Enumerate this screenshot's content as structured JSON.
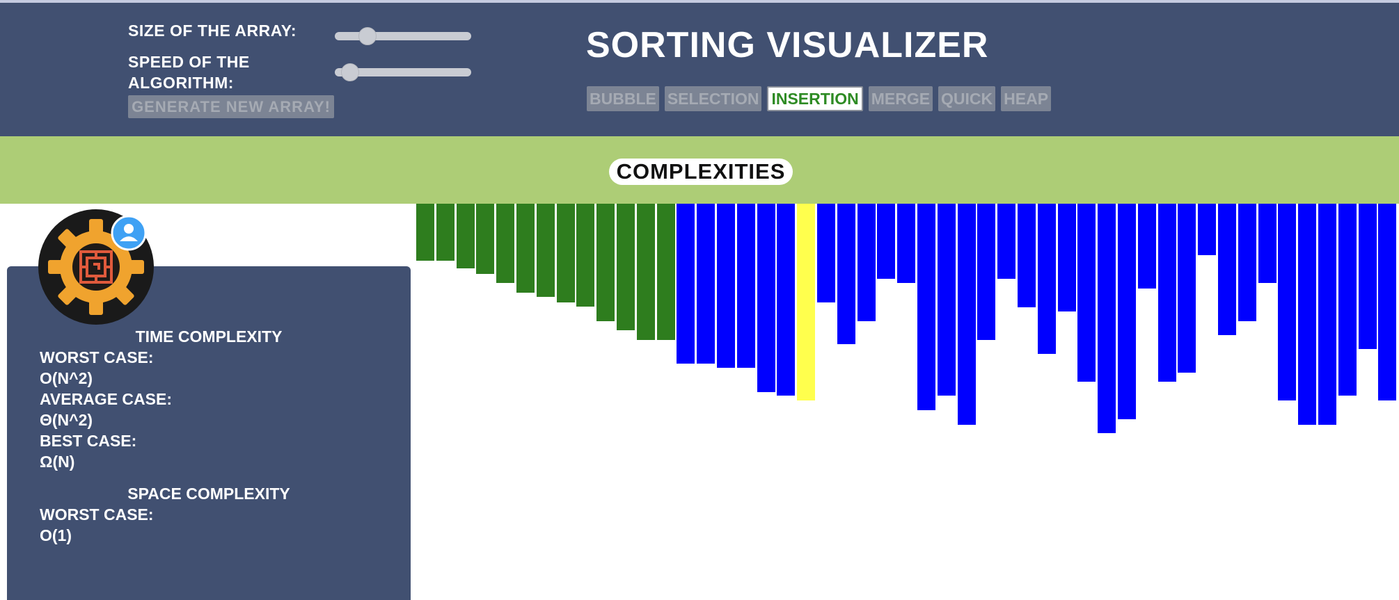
{
  "header": {
    "size_label": "SIZE OF THE ARRAY:",
    "speed_label_line1": "SPEED OF THE",
    "speed_label_line2": "ALGORITHM:",
    "size_value": 0.2,
    "speed_value": 0.05,
    "generate_label": "GENERATE NEW ARRAY!",
    "title": "SORTING VISUALIZER",
    "algorithms": [
      "BUBBLE",
      "SELECTION",
      "INSERTION",
      "MERGE",
      "QUICK",
      "HEAP"
    ],
    "active_algorithm": "INSERTION"
  },
  "complexities_label": "COMPLEXITIES",
  "panel": {
    "time_heading": "TIME COMPLEXITY",
    "time_worst_label": "WORST CASE:",
    "time_worst_value": "O(N^2)",
    "time_avg_label": "AVERAGE CASE:",
    "time_avg_value": "Θ(N^2)",
    "time_best_label": "BEST CASE:",
    "time_best_value": "Ω(N)",
    "space_heading": "SPACE COMPLEXITY",
    "space_worst_label": "WORST CASE:",
    "space_worst_value": "O(1)"
  },
  "colors": {
    "header_bg": "#415071",
    "band_bg": "#adcd76",
    "sorted": "#2e7d1e",
    "unsorted": "#0000ff",
    "current": "#ffff4d",
    "active_text": "#2e8b24"
  },
  "array": {
    "sorted_count": 13,
    "current_index": 19,
    "values": [
      82,
      82,
      93,
      101,
      114,
      128,
      134,
      142,
      148,
      169,
      182,
      196,
      196,
      230,
      230,
      236,
      236,
      271,
      276,
      283,
      142,
      202,
      169,
      108,
      114,
      297,
      276,
      318,
      196,
      108,
      149,
      216,
      155,
      256,
      330,
      310,
      122,
      256,
      243,
      74,
      189,
      169,
      114,
      283,
      318,
      318,
      276,
      209,
      283
    ]
  }
}
